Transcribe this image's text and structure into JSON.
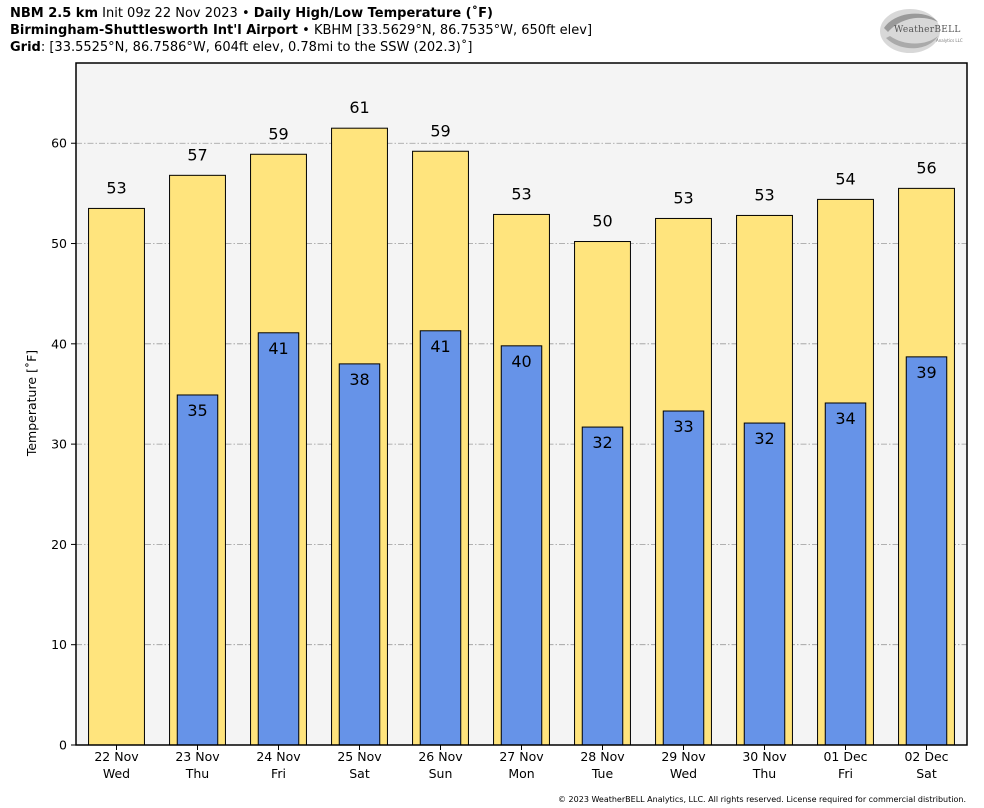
{
  "header": {
    "line1_model": "NBM 2.5 km",
    "line1_init": "Init 09z 22 Nov 2023",
    "line1_sep": "•",
    "line1_product": "Daily High/Low Temperature (˚F)",
    "line2_location": "Birmingham-Shuttlesworth Int'l Airport",
    "line2_sep": "•",
    "line2_station": "KBHM [33.5629°N, 86.7535°W, 650ft elev]",
    "line3_label": "Grid",
    "line3_value": ": [33.5525°N, 86.7586°W, 604ft elev, 0.78mi to the SSW (202.3)˚]"
  },
  "logo": {
    "text": "WeatherBELL",
    "subtext": "Analytics LLC"
  },
  "footer": "© 2023 WeatherBELL Analytics, LLC. All rights reserved. License required for commercial distribution.",
  "chart_data": {
    "type": "bar",
    "ylabel": "Temperature [˚F]",
    "ylim": [
      0,
      68
    ],
    "yticks": [
      0,
      10,
      20,
      30,
      40,
      50,
      60
    ],
    "grid": true,
    "categories": [
      {
        "date": "22 Nov",
        "day": "Wed"
      },
      {
        "date": "23 Nov",
        "day": "Thu"
      },
      {
        "date": "24 Nov",
        "day": "Fri"
      },
      {
        "date": "25 Nov",
        "day": "Sat"
      },
      {
        "date": "26 Nov",
        "day": "Sun"
      },
      {
        "date": "27 Nov",
        "day": "Mon"
      },
      {
        "date": "28 Nov",
        "day": "Tue"
      },
      {
        "date": "29 Nov",
        "day": "Wed"
      },
      {
        "date": "30 Nov",
        "day": "Thu"
      },
      {
        "date": "01 Dec",
        "day": "Fri"
      },
      {
        "date": "02 Dec",
        "day": "Sat"
      }
    ],
    "series": [
      {
        "kind": "high",
        "color": "#ffe47d",
        "values": [
          53.5,
          56.8,
          58.9,
          61.5,
          59.2,
          52.9,
          50.2,
          52.5,
          52.8,
          54.4,
          55.5
        ],
        "labels": [
          "53",
          "57",
          "59",
          "61",
          "59",
          "53",
          "50",
          "53",
          "53",
          "54",
          "56"
        ]
      },
      {
        "kind": "low",
        "color": "#6693e8",
        "values": [
          null,
          34.9,
          41.1,
          38.0,
          41.3,
          39.8,
          31.7,
          33.3,
          32.1,
          34.1,
          38.7
        ],
        "labels": [
          null,
          "35",
          "41",
          "38",
          "41",
          "40",
          "32",
          "33",
          "32",
          "34",
          "39"
        ]
      }
    ]
  }
}
